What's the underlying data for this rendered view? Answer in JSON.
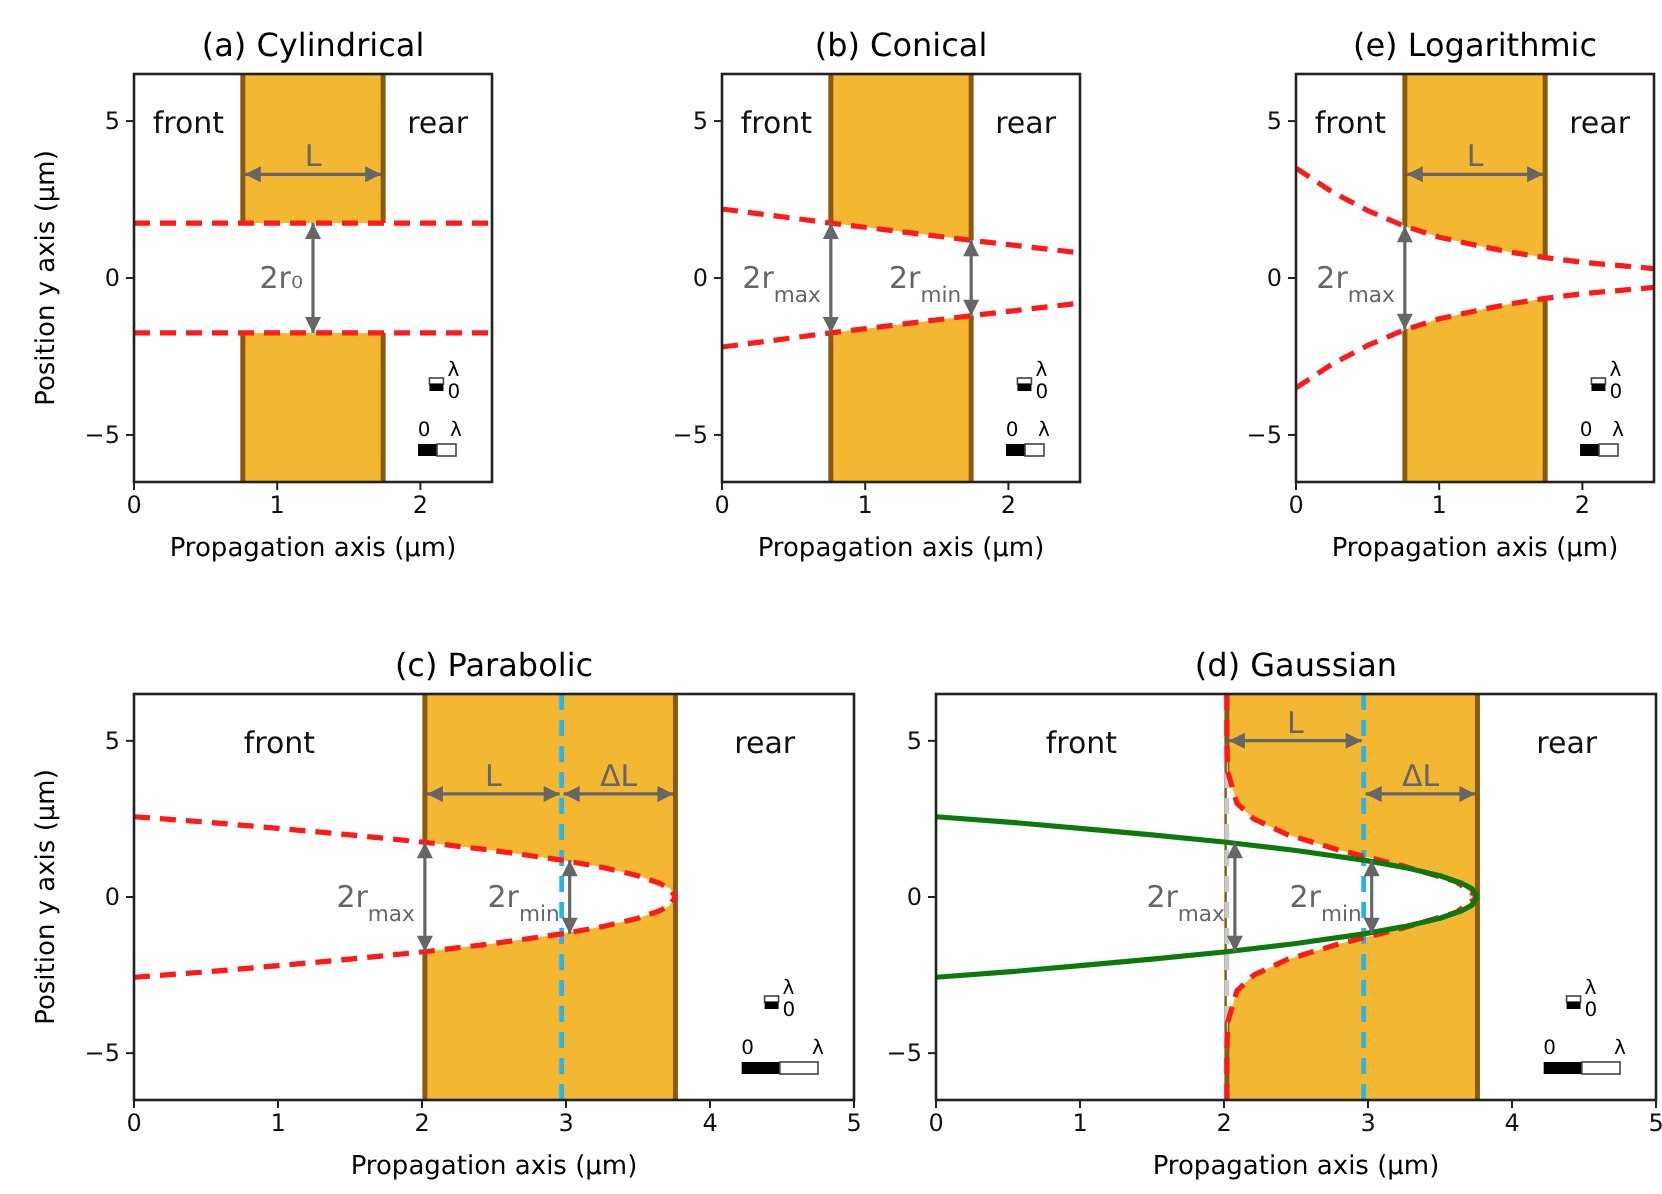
{
  "chart_data": [
    {
      "type": "line",
      "title": "(a) Cylindrical",
      "xlabel": "Propagation axis (µm)",
      "ylabel": "Position y axis (µm)",
      "xlim": [
        0,
        2.5
      ],
      "xticks": [
        0,
        1,
        2
      ],
      "ylim": [
        -6.5,
        6.5
      ],
      "yticks": [
        -5,
        0,
        5
      ],
      "series": [
        {
          "color": "#ff1a1a",
          "line_style": "dashed",
          "x": [
            0,
            2.5
          ],
          "values": [
            1.75,
            1.75
          ]
        },
        {
          "color": "#ff1a1a",
          "line_style": "dashed",
          "x": [
            0,
            2.5
          ],
          "values": [
            -1.75,
            -1.75
          ]
        }
      ],
      "bands": [
        {
          "axis": "x",
          "from": 0.76,
          "to": 1.74,
          "color": "#f4b731"
        }
      ],
      "annotations": [
        "front",
        "rear",
        "L",
        "2r₀",
        "λ",
        "0",
        "0",
        "λ"
      ]
    },
    {
      "type": "line",
      "title": "(b) Conical",
      "xlabel": "Propagation axis (µm)",
      "xlim": [
        0,
        2.5
      ],
      "xticks": [
        0,
        1,
        2
      ],
      "ylim": [
        -6.5,
        6.5
      ],
      "yticks": [
        -5,
        0,
        5
      ],
      "series": [
        {
          "color": "#ff1a1a",
          "line_style": "dashed",
          "x": [
            0,
            0.76,
            1.74,
            2.5
          ],
          "values": [
            2.2,
            1.75,
            1.2,
            0.8
          ]
        },
        {
          "color": "#ff1a1a",
          "line_style": "dashed",
          "x": [
            0,
            0.76,
            1.74,
            2.5
          ],
          "values": [
            -2.2,
            -1.75,
            -1.2,
            -0.8
          ]
        }
      ],
      "bands": [
        {
          "axis": "x",
          "from": 0.76,
          "to": 1.74,
          "color": "#f4b731"
        }
      ],
      "annotations": [
        "front",
        "rear",
        {
          "text": "2r$_{max}$",
          "x": 0.76,
          "y": 0
        },
        {
          "text": "2r$_{min}$",
          "x": 1.74,
          "y": 0
        },
        "λ",
        "0",
        "0",
        "λ"
      ]
    },
    {
      "type": "line",
      "title": "(e) Logarithmic",
      "xlabel": "Propagation axis (µm)",
      "xlim": [
        0,
        2.5
      ],
      "xticks": [
        0,
        1,
        2
      ],
      "ylim": [
        -6.5,
        6.5
      ],
      "yticks": [
        -5,
        0,
        5
      ],
      "series": [
        {
          "color": "#ff1a1a",
          "line_style": "dashed",
          "x": [
            0,
            0.25,
            0.5,
            0.76,
            1,
            1.25,
            1.5,
            1.74,
            2,
            2.25,
            2.5
          ],
          "values": [
            3.5,
            2.75,
            2.15,
            1.65,
            1.3,
            1.05,
            0.82,
            0.65,
            0.5,
            0.4,
            0.3
          ]
        },
        {
          "color": "#ff1a1a",
          "line_style": "dashed",
          "x": [
            0,
            0.25,
            0.5,
            0.76,
            1,
            1.25,
            1.5,
            1.74,
            2,
            2.25,
            2.5
          ],
          "values": [
            -3.5,
            -2.75,
            -2.15,
            -1.65,
            -1.3,
            -1.05,
            -0.82,
            -0.65,
            -0.5,
            -0.4,
            -0.3
          ]
        }
      ],
      "bands": [
        {
          "axis": "x",
          "from": 0.76,
          "to": 1.74,
          "color": "#f4b731"
        }
      ],
      "annotations": [
        "front",
        "rear",
        "L",
        {
          "text": "2r$_{max}$",
          "x": 0.76,
          "y": 0
        },
        "λ",
        "0",
        "0",
        "λ"
      ]
    },
    {
      "type": "line",
      "title": "(c) Parabolic",
      "xlabel": "Propagation axis (µm)",
      "ylabel": "Position y axis (µm)",
      "xlim": [
        0,
        5
      ],
      "xticks": [
        0,
        1,
        2,
        3,
        4,
        5
      ],
      "ylim": [
        -6.5,
        6.5
      ],
      "yticks": [
        -5,
        0,
        5
      ],
      "series": [
        {
          "color": "#ff1a1a",
          "line_style": "dashed",
          "x": [
            0,
            0.5,
            1,
            1.5,
            2,
            2.5,
            2.97,
            3.25,
            3.5,
            3.65,
            3.72,
            3.76
          ],
          "values": [
            2.57,
            2.4,
            2.2,
            1.99,
            1.76,
            1.49,
            1.18,
            0.95,
            0.68,
            0.44,
            0.27,
            0
          ]
        },
        {
          "color": "#ff1a1a",
          "line_style": "dashed",
          "x": [
            0,
            0.5,
            1,
            1.5,
            2,
            2.5,
            2.97,
            3.25,
            3.5,
            3.65,
            3.72,
            3.76
          ],
          "values": [
            -2.57,
            -2.4,
            -2.2,
            -1.99,
            -1.76,
            -1.49,
            -1.18,
            -0.95,
            -0.68,
            -0.44,
            -0.27,
            0
          ]
        }
      ],
      "bands": [
        {
          "axis": "x",
          "from": 2.02,
          "to": 3.76,
          "color": "#f4b731"
        }
      ],
      "ref_lines": [
        {
          "axis": "x",
          "value": 2.97,
          "color": "#2ab4e6",
          "line_style": "dashed"
        }
      ],
      "annotations": [
        "front",
        "rear",
        "L",
        "ΔL",
        {
          "text": "2r$_{max}$",
          "x": 2.02,
          "y": 0
        },
        {
          "text": "2r$_{min}$",
          "x": 2.97,
          "y": 0
        },
        "λ",
        "0",
        "0",
        "λ"
      ]
    },
    {
      "type": "line",
      "title": "(d) Gaussian",
      "xlabel": "Propagation axis (µm)",
      "xlim": [
        0,
        5
      ],
      "xticks": [
        0,
        1,
        2,
        3,
        4,
        5
      ],
      "ylim": [
        -6.5,
        6.5
      ],
      "yticks": [
        -5,
        0,
        5
      ],
      "series": [
        {
          "color": "#ff1a1a",
          "line_style": "dashed",
          "x": [
            2.02,
            2.02,
            2.026,
            2.09,
            2.206,
            2.44,
            2.8,
            3.24,
            3.61,
            3.76
          ],
          "values": [
            6.5,
            5,
            4,
            3,
            2.5,
            2,
            1.5,
            1,
            0.5,
            0
          ]
        },
        {
          "color": "#ff1a1a",
          "line_style": "dashed",
          "x": [
            2.02,
            2.02,
            2.026,
            2.09,
            2.206,
            2.44,
            2.8,
            3.24,
            3.61,
            3.76
          ],
          "values": [
            -6.5,
            -5,
            -4,
            -3,
            -2.5,
            -2,
            -1.5,
            -1,
            -0.5,
            0
          ]
        },
        {
          "color": "#0b7a0b",
          "line_style": "solid",
          "x": [
            0,
            0.5,
            1,
            1.5,
            2,
            2.5,
            2.97,
            3.25,
            3.5,
            3.65,
            3.72,
            3.76
          ],
          "values": [
            2.57,
            2.4,
            2.2,
            1.99,
            1.76,
            1.49,
            1.18,
            0.95,
            0.68,
            0.44,
            0.27,
            0
          ]
        },
        {
          "color": "#0b7a0b",
          "line_style": "solid",
          "x": [
            0,
            0.5,
            1,
            1.5,
            2,
            2.5,
            2.97,
            3.25,
            3.5,
            3.65,
            3.72,
            3.76
          ],
          "values": [
            -2.57,
            -2.4,
            -2.2,
            -1.99,
            -1.76,
            -1.49,
            -1.18,
            -0.95,
            -0.68,
            -0.44,
            -0.27,
            0
          ]
        }
      ],
      "bands": [
        {
          "axis": "x",
          "from": 2.02,
          "to": 3.76,
          "color": "#f4b731"
        }
      ],
      "ref_lines": [
        {
          "axis": "x",
          "value": 2.02,
          "color": "#c8c8c8",
          "line_style": "dashed"
        },
        {
          "axis": "x",
          "value": 2.97,
          "color": "#2ab4e6",
          "line_style": "dashed"
        }
      ],
      "annotations": [
        "front",
        "rear",
        "L",
        "ΔL",
        {
          "text": "2r$_{max}$",
          "x": 2.02,
          "y": 0
        },
        {
          "text": "2r$_{min}$",
          "x": 2.97,
          "y": 0
        },
        "λ",
        "0",
        "0",
        "λ"
      ]
    }
  ]
}
